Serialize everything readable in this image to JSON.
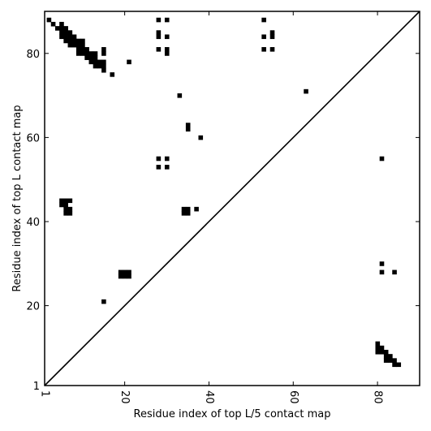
{
  "chart_data": {
    "type": "heatmap",
    "title": "",
    "xlabel": "Residue index of top L/5 contact map",
    "ylabel": "Residue index of top L contact map",
    "xlim": [
      1,
      90
    ],
    "ylim": [
      1,
      90
    ],
    "xticks": [
      1,
      20,
      40,
      60,
      80
    ],
    "yticks": [
      1,
      20,
      40,
      60,
      80
    ],
    "xtick_labels": [
      "1",
      "20",
      "40",
      "60",
      "80"
    ],
    "ytick_labels": [
      "1",
      "20",
      "40",
      "60",
      "80"
    ],
    "diagonal": [
      [
        1,
        1
      ],
      [
        90,
        90
      ]
    ],
    "upper_contacts": [
      [
        2,
        88
      ],
      [
        3,
        87
      ],
      [
        4,
        86
      ],
      [
        5,
        87
      ],
      [
        5,
        86
      ],
      [
        6,
        86
      ],
      [
        5,
        85
      ],
      [
        6,
        85
      ],
      [
        7,
        85
      ],
      [
        5,
        84
      ],
      [
        6,
        84
      ],
      [
        7,
        84
      ],
      [
        8,
        84
      ],
      [
        6,
        83
      ],
      [
        7,
        83
      ],
      [
        8,
        83
      ],
      [
        9,
        83
      ],
      [
        10,
        83
      ],
      [
        7,
        82
      ],
      [
        8,
        82
      ],
      [
        9,
        82
      ],
      [
        10,
        82
      ],
      [
        9,
        81
      ],
      [
        10,
        81
      ],
      [
        11,
        81
      ],
      [
        9,
        80
      ],
      [
        10,
        80
      ],
      [
        11,
        80
      ],
      [
        12,
        80
      ],
      [
        13,
        80
      ],
      [
        11,
        79
      ],
      [
        12,
        79
      ],
      [
        13,
        79
      ],
      [
        12,
        78
      ],
      [
        13,
        78
      ],
      [
        14,
        78
      ],
      [
        15,
        78
      ],
      [
        13,
        77
      ],
      [
        14,
        77
      ],
      [
        15,
        77
      ],
      [
        15,
        76
      ],
      [
        15,
        81
      ],
      [
        15,
        80
      ],
      [
        17,
        75
      ],
      [
        21,
        78
      ],
      [
        28,
        88
      ],
      [
        30,
        88
      ],
      [
        28,
        85
      ],
      [
        28,
        84
      ],
      [
        30,
        84
      ],
      [
        28,
        81
      ],
      [
        30,
        81
      ],
      [
        30,
        80
      ],
      [
        53,
        88
      ],
      [
        53,
        84
      ],
      [
        55,
        85
      ],
      [
        55,
        84
      ],
      [
        53,
        81
      ],
      [
        55,
        81
      ],
      [
        33,
        70
      ],
      [
        63,
        71
      ],
      [
        35,
        63
      ],
      [
        35,
        62
      ],
      [
        38,
        60
      ],
      [
        28,
        55
      ],
      [
        30,
        55
      ],
      [
        28,
        53
      ],
      [
        30,
        53
      ],
      [
        5,
        45
      ],
      [
        6,
        45
      ],
      [
        7,
        45
      ],
      [
        5,
        44
      ],
      [
        6,
        44
      ],
      [
        6,
        43
      ],
      [
        7,
        43
      ],
      [
        6,
        42
      ],
      [
        7,
        42
      ],
      [
        34,
        43
      ],
      [
        35,
        43
      ],
      [
        34,
        42
      ],
      [
        35,
        42
      ],
      [
        37,
        43
      ],
      [
        19,
        28
      ],
      [
        20,
        28
      ],
      [
        21,
        28
      ],
      [
        19,
        27
      ],
      [
        20,
        27
      ],
      [
        21,
        27
      ],
      [
        15,
        21
      ]
    ],
    "lower_contacts": [
      [
        81,
        55
      ],
      [
        81,
        30
      ],
      [
        81,
        28
      ],
      [
        84,
        28
      ],
      [
        80,
        11
      ],
      [
        80,
        10
      ],
      [
        81,
        10
      ],
      [
        80,
        9
      ],
      [
        81,
        9
      ],
      [
        82,
        9
      ],
      [
        82,
        8
      ],
      [
        83,
        8
      ],
      [
        82,
        7
      ],
      [
        83,
        7
      ],
      [
        84,
        7
      ],
      [
        84,
        6
      ],
      [
        85,
        6
      ]
    ]
  }
}
